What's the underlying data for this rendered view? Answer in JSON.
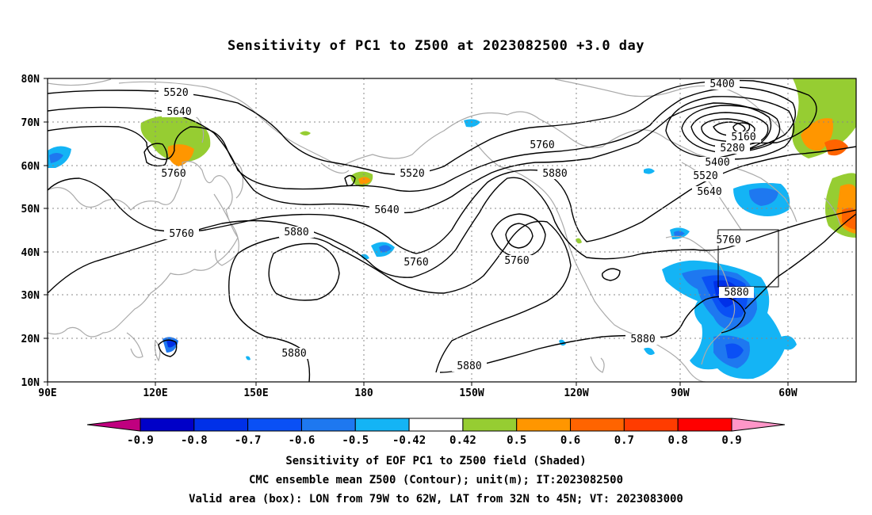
{
  "title": "Sensitivity of PC1 to Z500 at 2023082500 +3.0 day",
  "lat_labels": [
    "80N",
    "70N",
    "60N",
    "50N",
    "40N",
    "30N",
    "20N",
    "10N"
  ],
  "lon_labels": [
    "90E",
    "120E",
    "150E",
    "180",
    "150W",
    "120W",
    "90W",
    "60W"
  ],
  "contour_labels": {
    "c5520_top": "5520",
    "c5640_left": "5640",
    "c5760_left": "5760",
    "c5520_mid": "5520",
    "c5760_mid": "5760",
    "c5880_mid": "5880",
    "c5640_mid": "5640",
    "c5760_w": "5760",
    "c5880_center": "5880",
    "c5760_low": "5760",
    "c5760_ring": "5760",
    "c5880_bottom": "5880",
    "c5880_bottom2": "5880",
    "c5880_east": "5880",
    "c5400_top": "5400",
    "c5160": "5160",
    "c5280": "5280",
    "c5400": "5400",
    "c5520_e": "5520",
    "c5640_e": "5640",
    "c5760_e": "5760",
    "c5880_box": "5880"
  },
  "colorbar": {
    "tick_labels": [
      "-0.9",
      "-0.8",
      "-0.7",
      "-0.6",
      "-0.5",
      "-0.42",
      "0.42",
      "0.5",
      "0.6",
      "0.7",
      "0.8",
      "0.9"
    ],
    "colors": [
      "#c0007f",
      "#0000c8",
      "#0030e8",
      "#0a50f5",
      "#1e78f0",
      "#14b4f5",
      "#ffffff",
      "#96cd32",
      "#ff9600",
      "#ff6400",
      "#ff3c00",
      "#ff0000",
      "#ff96c8"
    ]
  },
  "captions": [
    "Sensitivity of EOF PC1 to Z500 field (Shaded)",
    "CMC ensemble mean Z500 (Contour); unit(m); IT:2023082500",
    "Valid area (box): LON from 79W to 62W, LAT from 32N to 45N; VT: 2023083000"
  ]
}
